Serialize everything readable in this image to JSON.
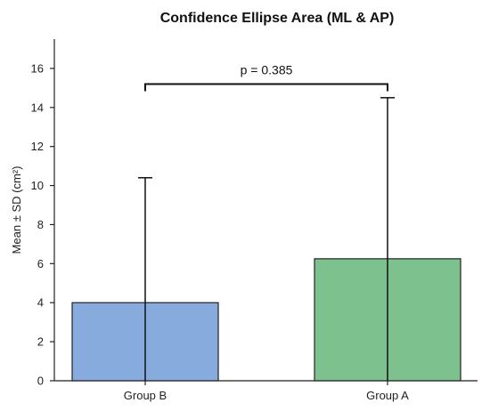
{
  "chart_data": {
    "type": "bar",
    "title": "Confidence Ellipse Area (ML & AP)",
    "xlabel": "",
    "ylabel": "Mean ± SD (cm²)",
    "categories": [
      "Group B",
      "Group A"
    ],
    "values": [
      4.0,
      6.25
    ],
    "errors": [
      6.4,
      8.25
    ],
    "colors": [
      "#86abdc",
      "#7cc18e"
    ],
    "ylim": [
      0,
      17.5
    ],
    "yticks": [
      "0",
      "2",
      "4",
      "6",
      "8",
      "10",
      "12",
      "14",
      "16"
    ],
    "ytick_values": [
      0,
      2,
      4,
      6,
      8,
      10,
      12,
      14,
      16
    ],
    "significance": {
      "text": "p = 0.385",
      "level": 15.2
    },
    "grid": false
  }
}
